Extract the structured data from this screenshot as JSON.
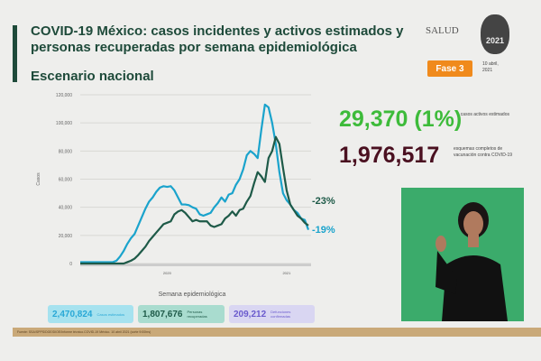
{
  "header": {
    "title": "COVID-19 México: casos incidentes y activos estimados y personas recuperadas por semana epidemiológica",
    "subtitle": "Escenario nacional",
    "logo_text": "SALUD",
    "seal_text": "2021",
    "phase": "Fase 3",
    "date": "10 abril, 2021"
  },
  "stats": {
    "active": "29,370 (1%)",
    "active_label": "casos activos estimados",
    "vaccinated": "1,976,517",
    "vaccinated_label": "esquemas completos de vacunación contra COVID-19"
  },
  "boxes": [
    {
      "value": "2,470,824",
      "label": "Casos estimados",
      "color": "#29a8d6",
      "bg": "#a6e2ef"
    },
    {
      "value": "1,807,676",
      "label": "Personas recuperadas",
      "color": "#1e5a48",
      "bg": "#a9dccf"
    },
    {
      "value": "209,212",
      "label": "Defunciones confirmadas",
      "color": "#6a5acd",
      "bg": "#d9d6f2"
    }
  ],
  "source": "Fuente: SSA/SPPS/DGE/DIOE/Informe técnico.COVID-19 México. 10 abril 2021 (corte 9:00hrs)",
  "chart_data": {
    "type": "line",
    "title": "",
    "xlabel": "Semana epidemiológica",
    "ylabel": "Casos",
    "ylim": [
      0,
      120000
    ],
    "yticks": [
      "0",
      "20,000",
      "40,000",
      "60,000",
      "80,000",
      "100,000",
      "120,000"
    ],
    "xtick_labels": [
      {
        "week": 25,
        "label": "2020"
      },
      {
        "week": 58,
        "label": "2021"
      }
    ],
    "grid": true,
    "x": [
      1,
      2,
      3,
      4,
      5,
      6,
      7,
      8,
      9,
      10,
      11,
      12,
      13,
      14,
      15,
      16,
      17,
      18,
      19,
      20,
      21,
      22,
      23,
      24,
      25,
      26,
      27,
      28,
      29,
      30,
      31,
      32,
      33,
      34,
      35,
      36,
      37,
      38,
      39,
      40,
      41,
      42,
      43,
      44,
      45,
      46,
      47,
      48,
      49,
      50,
      51,
      52,
      53,
      54,
      55,
      56,
      57,
      58,
      59,
      60,
      61,
      62,
      63,
      64
    ],
    "series": [
      {
        "color": "#1aa3cc",
        "end_label": "-19%",
        "values": [
          1000,
          1000,
          1000,
          1000,
          1000,
          1000,
          1000,
          1000,
          1000,
          1000,
          2000,
          5000,
          9000,
          14000,
          18000,
          21000,
          27000,
          33000,
          39000,
          44000,
          47000,
          51000,
          54000,
          55000,
          54500,
          55000,
          52000,
          47000,
          42000,
          42000,
          41500,
          40000,
          39000,
          35000,
          34000,
          35000,
          36000,
          40000,
          43000,
          47000,
          44000,
          49000,
          50000,
          56000,
          60000,
          67000,
          77000,
          80000,
          78000,
          75000,
          95000,
          113000,
          111000,
          100000,
          85000,
          65000,
          50000,
          45000,
          42000,
          38000,
          36000,
          32000,
          31000,
          24000
        ]
      },
      {
        "color": "#1e5a48",
        "end_label": "-23%",
        "values": [
          0,
          0,
          0,
          0,
          0,
          0,
          0,
          0,
          0,
          0,
          0,
          0,
          0,
          1000,
          2000,
          3500,
          6000,
          9000,
          12000,
          16000,
          19000,
          22000,
          25000,
          28000,
          29000,
          30000,
          35000,
          37000,
          38000,
          36000,
          33000,
          30000,
          31000,
          30000,
          30000,
          30000,
          27000,
          26000,
          27000,
          28000,
          32000,
          34000,
          37000,
          34000,
          38000,
          39000,
          44000,
          48000,
          57000,
          65000,
          62000,
          58000,
          75000,
          80000,
          90000,
          85000,
          68000,
          52000,
          42000,
          38000,
          34000,
          32000,
          29000,
          27000
        ]
      }
    ]
  }
}
